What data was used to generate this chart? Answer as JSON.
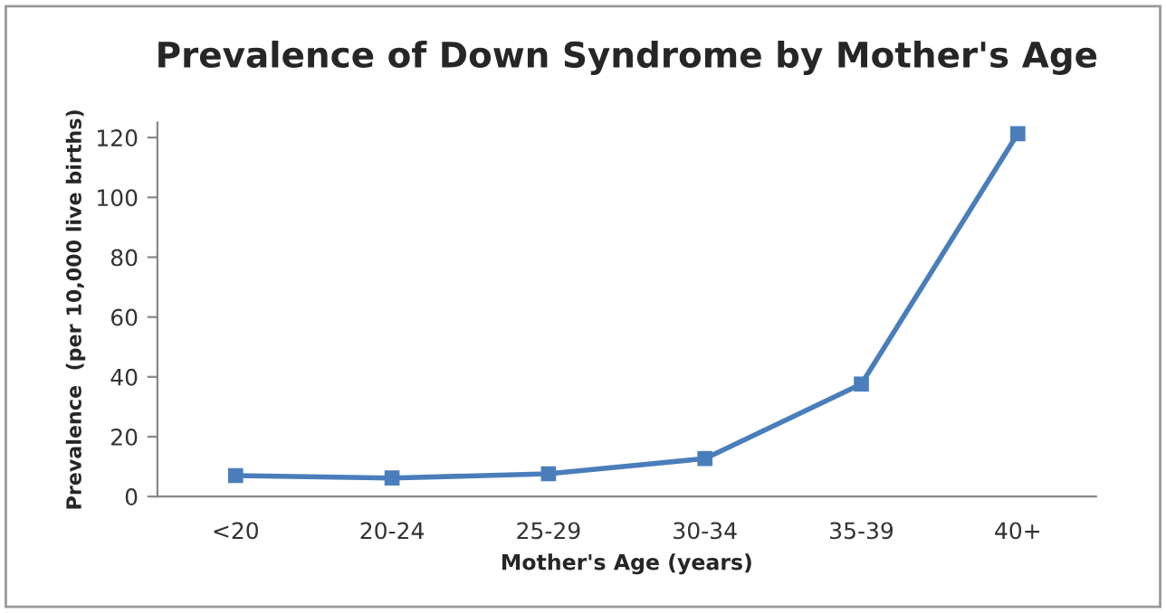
{
  "chart_data": {
    "type": "line",
    "title": "Prevalence of Down Syndrome by Mother's Age",
    "xlabel": "Mother's Age (years)",
    "ylabel": "Prevalence  (per 10,000 live births)",
    "categories": [
      "<20",
      "20-24",
      "25-29",
      "30-34",
      "35-39",
      "40+"
    ],
    "series": [
      {
        "color": "#4a7ebb",
        "values": [
          7.0,
          6.2,
          7.6,
          12.7,
          37.6,
          121.3
        ]
      }
    ],
    "ylim": [
      0,
      125
    ],
    "yticks": [
      0,
      20,
      40,
      60,
      80,
      100,
      120
    ],
    "grid": false,
    "legend": false,
    "marker": "square",
    "line_style": "solid"
  }
}
